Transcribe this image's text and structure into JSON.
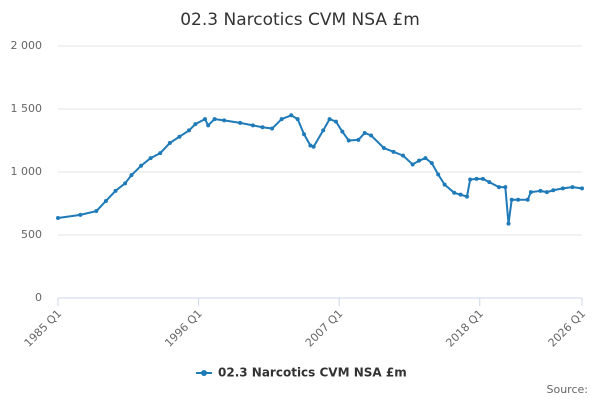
{
  "chart_data": {
    "type": "line",
    "title": "02.3 Narcotics CVM NSA £m",
    "x": [
      1985.0,
      1986.75,
      1988.0,
      1988.75,
      1989.5,
      1990.25,
      1990.75,
      1991.5,
      1992.25,
      1993.0,
      1993.75,
      1994.5,
      1995.25,
      1995.75,
      1996.5,
      1996.75,
      1997.25,
      1998.0,
      1999.25,
      2000.25,
      2001.0,
      2001.75,
      2002.5,
      2003.25,
      2003.75,
      2004.25,
      2004.75,
      2005.0,
      2005.75,
      2006.25,
      2006.75,
      2007.25,
      2007.75,
      2008.5,
      2009.0,
      2009.5,
      2010.5,
      2011.25,
      2012.0,
      2012.75,
      2013.25,
      2013.75,
      2014.25,
      2014.75,
      2015.25,
      2016.0,
      2016.5,
      2017.0,
      2017.25,
      2017.75,
      2018.25,
      2018.75,
      2019.5,
      2020.0,
      2020.25,
      2020.5,
      2021.0,
      2021.75,
      2022.0,
      2022.75,
      2023.25,
      2023.75,
      2024.5,
      2025.25,
      2026.0
    ],
    "series": [
      {
        "name": "02.3 Narcotics CVM NSA £m",
        "color": "#1f7ab8",
        "values": [
          635,
          660,
          690,
          770,
          850,
          910,
          975,
          1050,
          1110,
          1150,
          1230,
          1280,
          1330,
          1380,
          1420,
          1370,
          1420,
          1410,
          1390,
          1370,
          1355,
          1345,
          1420,
          1450,
          1420,
          1300,
          1210,
          1200,
          1330,
          1420,
          1400,
          1320,
          1250,
          1255,
          1310,
          1290,
          1190,
          1160,
          1130,
          1060,
          1090,
          1110,
          1070,
          980,
          900,
          835,
          820,
          805,
          940,
          945,
          945,
          920,
          880,
          880,
          590,
          780,
          780,
          780,
          840,
          850,
          840,
          855,
          870,
          880,
          870
        ]
      }
    ],
    "xlim": [
      1985,
      2026
    ],
    "xticks": [
      {
        "value": 1985,
        "label": "1985 Q1"
      },
      {
        "value": 1996,
        "label": "1996 Q1"
      },
      {
        "value": 2007,
        "label": "2007 Q1"
      },
      {
        "value": 2018,
        "label": "2018 Q1"
      },
      {
        "value": 2026,
        "label": "2026 Q1"
      }
    ],
    "ylim": [
      0,
      2000
    ],
    "yticks": [
      0,
      500,
      {
        "value": 1000,
        "label": "1 000"
      },
      {
        "value": 1500,
        "label": "1 500"
      },
      {
        "value": 2000,
        "label": "2 000"
      }
    ],
    "grid": true,
    "legend": "bottom",
    "source": "Source:"
  }
}
